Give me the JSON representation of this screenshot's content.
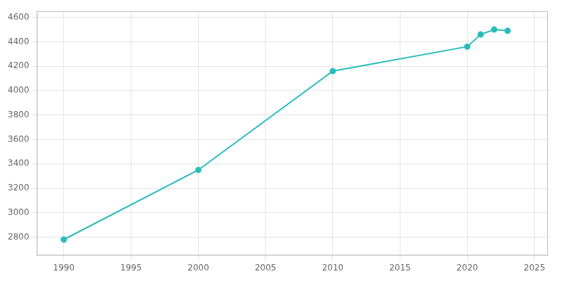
{
  "chart_data": {
    "type": "line",
    "x": [
      1990,
      2000,
      2010,
      2020,
      2021,
      2022,
      2023
    ],
    "values": [
      2780,
      3350,
      4160,
      4360,
      4460,
      4500,
      4490
    ],
    "color": "#2abcbc",
    "marker": "circle",
    "xlim": [
      1988,
      2026
    ],
    "xticks": [
      1990,
      1995,
      2000,
      2005,
      2010,
      2015,
      2020,
      2025
    ],
    "ylim": [
      2650,
      4650
    ],
    "yticks": [
      2800,
      3000,
      3200,
      3400,
      3600,
      3800,
      4000,
      4200,
      4400,
      4600
    ],
    "grid": true
  }
}
